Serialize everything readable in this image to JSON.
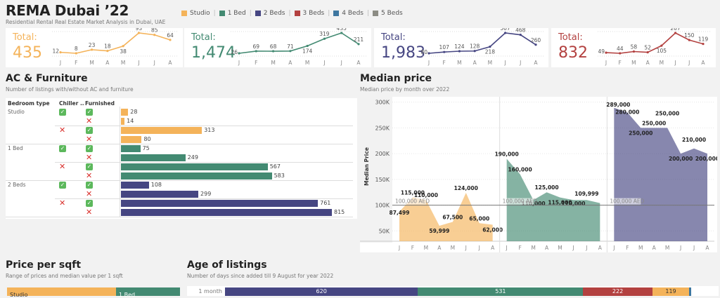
{
  "header": {
    "title": "REMA Dubai ’22",
    "subtitle": "Residential Rental Real Estate Market Analysis in Dubai, UAE",
    "legend": [
      {
        "label": "Studio",
        "color": "#f4b35a"
      },
      {
        "label": "1 Bed",
        "color": "#438a72"
      },
      {
        "label": "2 Beds",
        "color": "#464682"
      },
      {
        "label": "3 Beds",
        "color": "#b34140"
      },
      {
        "label": "4 Beds",
        "color": "#3e77a0"
      },
      {
        "label": "5 Beds",
        "color": "#8c8c84"
      }
    ]
  },
  "kpis": [
    {
      "label": "Total:",
      "value": "435",
      "color": "#f4b35a",
      "months": [
        "J",
        "F",
        "M",
        "A",
        "M",
        "J",
        "J",
        "A"
      ],
      "series": [
        12,
        8,
        23,
        18,
        38,
        93,
        85,
        64
      ]
    },
    {
      "label": "Total:",
      "value": "1,474",
      "color": "#438a72",
      "months": [
        "J",
        "F",
        "M",
        "A",
        "M",
        "J",
        "J",
        "A"
      ],
      "series": [
        26,
        69,
        68,
        71,
        174,
        319,
        435,
        211
      ]
    },
    {
      "label": "Total:",
      "value": "1,983",
      "color": "#464682",
      "months": [
        "J",
        "F",
        "M",
        "A",
        "M",
        "J",
        "J",
        "A"
      ],
      "series": [
        80,
        107,
        124,
        128,
        218,
        507,
        468,
        260
      ]
    },
    {
      "label": "Total:",
      "value": "832",
      "color": "#b34140",
      "months": [
        "J",
        "F",
        "M",
        "A",
        "M",
        "J",
        "J",
        "A"
      ],
      "series": [
        49,
        44,
        58,
        52,
        105,
        207,
        150,
        119
      ]
    }
  ],
  "ac_furniture": {
    "title": "AC & Furniture",
    "subtitle": "Number of listings with/without AC and furniture",
    "headers": {
      "bedroom": "Bedroom type",
      "chiller": "Chiller ..",
      "furnished": "Furnished"
    },
    "max": 815,
    "groups": [
      {
        "bedroom": "Studio",
        "color": "#f4b35a",
        "rows": [
          {
            "chiller": true,
            "furnished": true,
            "value": 28
          },
          {
            "chiller": true,
            "furnished": false,
            "value": 14
          },
          {
            "chiller": false,
            "furnished": true,
            "value": 313
          },
          {
            "chiller": false,
            "furnished": false,
            "value": 80
          }
        ]
      },
      {
        "bedroom": "1 Bed",
        "color": "#438a72",
        "rows": [
          {
            "chiller": true,
            "furnished": true,
            "value": 75
          },
          {
            "chiller": true,
            "furnished": false,
            "value": 249
          },
          {
            "chiller": false,
            "furnished": true,
            "value": 567
          },
          {
            "chiller": false,
            "furnished": false,
            "value": 583
          }
        ]
      },
      {
        "bedroom": "2 Beds",
        "color": "#464682",
        "rows": [
          {
            "chiller": true,
            "furnished": true,
            "value": 108
          },
          {
            "chiller": true,
            "furnished": false,
            "value": 299
          },
          {
            "chiller": false,
            "furnished": true,
            "value": 761
          },
          {
            "chiller": false,
            "furnished": false,
            "value": 815
          }
        ]
      }
    ]
  },
  "median": {
    "title": "Median price",
    "subtitle": "Median price by month over 2022"
  },
  "chart_data": {
    "type": "area",
    "title": "Median price",
    "subtitle": "Median price by month over 2022",
    "ylabel": "Median Price",
    "xlabel": "",
    "ylim": [
      30000,
      305000
    ],
    "yticks": [
      50000,
      100000,
      150000,
      200000,
      250000,
      300000
    ],
    "ytick_labels": [
      "50K",
      "100K",
      "150K",
      "200K",
      "250K",
      "300K"
    ],
    "x": [
      "J",
      "F",
      "M",
      "A",
      "M",
      "J",
      "J",
      "A"
    ],
    "reference_line": {
      "value": 100000,
      "label": "100,000 AED"
    },
    "grid": true,
    "series": [
      {
        "name": "Studio",
        "color": "#f4b35a",
        "values": [
          87499,
          115000,
          110000,
          59999,
          67500,
          124000,
          65000,
          62000
        ]
      },
      {
        "name": "1 Bed",
        "color": "#438a72",
        "values": [
          190000,
          160000,
          110000,
          125000,
          115000,
          110000,
          109999,
          104000
        ]
      },
      {
        "name": "2 Beds",
        "color": "#464682",
        "values": [
          289000,
          280000,
          250000,
          250000,
          250000,
          200000,
          210000,
          200000
        ]
      }
    ],
    "labels": [
      [
        "87,499",
        "115,000",
        "110,000",
        "59,999",
        "67,500",
        "124,000",
        "65,000",
        "62,000"
      ],
      [
        "190,000",
        "160,000",
        "110,000",
        "125,000",
        "115,000",
        "110,000",
        "109,999",
        ""
      ],
      [
        "289,000",
        "280,000",
        "250,000",
        "250,000",
        "250,000",
        "200,000",
        "210,000",
        "200,000"
      ]
    ]
  },
  "price_sqft": {
    "title": "Price per sqft",
    "subtitle": "Range of prices and median value per 1 sqft",
    "labels": [
      "Studio",
      "1 Bed"
    ]
  },
  "age": {
    "title": "Age of listings",
    "subtitle": "Number of days since added till 9 August for year 2022",
    "row_label": "1 month",
    "segments": [
      {
        "name": "2 Beds",
        "value": 620,
        "color": "#464682"
      },
      {
        "name": "1 Bed",
        "value": 531,
        "color": "#438a72"
      },
      {
        "name": "3 Beds",
        "value": 222,
        "color": "#b34140"
      },
      {
        "name": "Studio",
        "value": 119,
        "color": "#f4b35a"
      },
      {
        "name": "4 Beds",
        "value": 6,
        "color": "#3e77a0"
      }
    ]
  }
}
